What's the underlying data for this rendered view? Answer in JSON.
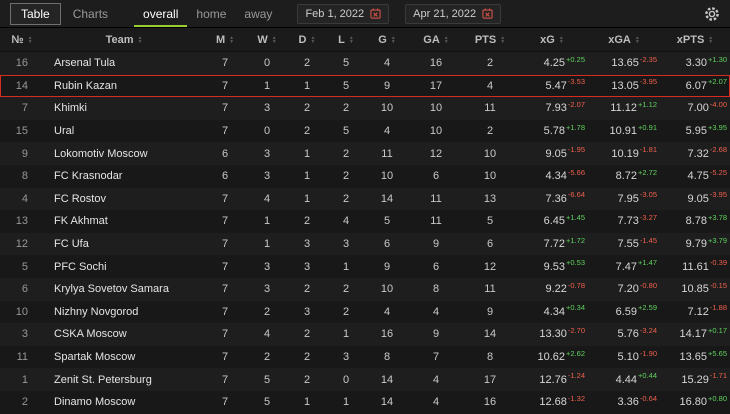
{
  "topbar": {
    "tabs": [
      {
        "label": "Table",
        "active": true
      },
      {
        "label": "Charts",
        "active": false
      }
    ],
    "scopes": [
      {
        "label": "overall",
        "active": true
      },
      {
        "label": "home",
        "active": false
      },
      {
        "label": "away",
        "active": false
      }
    ],
    "date_from": "Feb 1, 2022",
    "date_to": "Apr 21, 2022"
  },
  "table": {
    "columns": [
      "№",
      "Team",
      "M",
      "W",
      "D",
      "L",
      "G",
      "GA",
      "PTS",
      "xG",
      "xGA",
      "xPTS"
    ],
    "rows": [
      {
        "rank": "16",
        "team": "Arsenal Tula",
        "m": "7",
        "w": "0",
        "d": "2",
        "l": "5",
        "g": "4",
        "ga": "16",
        "pts": "2",
        "xg": "4.25",
        "xg_diff": "+0.25",
        "xga": "13.65",
        "xga_diff": "-2.35",
        "xpts": "3.30",
        "xpts_diff": "+1.30",
        "highlighted": false
      },
      {
        "rank": "14",
        "team": "Rubin Kazan",
        "m": "7",
        "w": "1",
        "d": "1",
        "l": "5",
        "g": "9",
        "ga": "17",
        "pts": "4",
        "xg": "5.47",
        "xg_diff": "-3.53",
        "xga": "13.05",
        "xga_diff": "-3.95",
        "xpts": "6.07",
        "xpts_diff": "+2.07",
        "highlighted": true
      },
      {
        "rank": "7",
        "team": "Khimki",
        "m": "7",
        "w": "3",
        "d": "2",
        "l": "2",
        "g": "10",
        "ga": "10",
        "pts": "11",
        "xg": "7.93",
        "xg_diff": "-2.07",
        "xga": "11.12",
        "xga_diff": "+1.12",
        "xpts": "7.00",
        "xpts_diff": "-4.00",
        "highlighted": false
      },
      {
        "rank": "15",
        "team": "Ural",
        "m": "7",
        "w": "0",
        "d": "2",
        "l": "5",
        "g": "4",
        "ga": "10",
        "pts": "2",
        "xg": "5.78",
        "xg_diff": "+1.78",
        "xga": "10.91",
        "xga_diff": "+0.91",
        "xpts": "5.95",
        "xpts_diff": "+3.95",
        "highlighted": false
      },
      {
        "rank": "9",
        "team": "Lokomotiv Moscow",
        "m": "6",
        "w": "3",
        "d": "1",
        "l": "2",
        "g": "11",
        "ga": "12",
        "pts": "10",
        "xg": "9.05",
        "xg_diff": "-1.95",
        "xga": "10.19",
        "xga_diff": "-1.81",
        "xpts": "7.32",
        "xpts_diff": "-2.68",
        "highlighted": false
      },
      {
        "rank": "8",
        "team": "FC Krasnodar",
        "m": "6",
        "w": "3",
        "d": "1",
        "l": "2",
        "g": "10",
        "ga": "6",
        "pts": "10",
        "xg": "4.34",
        "xg_diff": "-5.66",
        "xga": "8.72",
        "xga_diff": "+2.72",
        "xpts": "4.75",
        "xpts_diff": "-5.25",
        "highlighted": false
      },
      {
        "rank": "4",
        "team": "FC Rostov",
        "m": "7",
        "w": "4",
        "d": "1",
        "l": "2",
        "g": "14",
        "ga": "11",
        "pts": "13",
        "xg": "7.36",
        "xg_diff": "-6.64",
        "xga": "7.95",
        "xga_diff": "-3.05",
        "xpts": "9.05",
        "xpts_diff": "-3.95",
        "highlighted": false
      },
      {
        "rank": "13",
        "team": "FK Akhmat",
        "m": "7",
        "w": "1",
        "d": "2",
        "l": "4",
        "g": "5",
        "ga": "11",
        "pts": "5",
        "xg": "6.45",
        "xg_diff": "+1.45",
        "xga": "7.73",
        "xga_diff": "-3.27",
        "xpts": "8.78",
        "xpts_diff": "+3.78",
        "highlighted": false
      },
      {
        "rank": "12",
        "team": "FC Ufa",
        "m": "7",
        "w": "1",
        "d": "3",
        "l": "3",
        "g": "6",
        "ga": "9",
        "pts": "6",
        "xg": "7.72",
        "xg_diff": "+1.72",
        "xga": "7.55",
        "xga_diff": "-1.45",
        "xpts": "9.79",
        "xpts_diff": "+3.79",
        "highlighted": false
      },
      {
        "rank": "5",
        "team": "PFC Sochi",
        "m": "7",
        "w": "3",
        "d": "3",
        "l": "1",
        "g": "9",
        "ga": "6",
        "pts": "12",
        "xg": "9.53",
        "xg_diff": "+0.53",
        "xga": "7.47",
        "xga_diff": "+1.47",
        "xpts": "11.61",
        "xpts_diff": "-0.39",
        "highlighted": false
      },
      {
        "rank": "6",
        "team": "Krylya Sovetov Samara",
        "m": "7",
        "w": "3",
        "d": "2",
        "l": "2",
        "g": "10",
        "ga": "8",
        "pts": "11",
        "xg": "9.22",
        "xg_diff": "-0.78",
        "xga": "7.20",
        "xga_diff": "-0.80",
        "xpts": "10.85",
        "xpts_diff": "-0.15",
        "highlighted": false
      },
      {
        "rank": "10",
        "team": "Nizhny Novgorod",
        "m": "7",
        "w": "2",
        "d": "3",
        "l": "2",
        "g": "4",
        "ga": "4",
        "pts": "9",
        "xg": "4.34",
        "xg_diff": "+0.34",
        "xga": "6.59",
        "xga_diff": "+2.59",
        "xpts": "7.12",
        "xpts_diff": "-1.88",
        "highlighted": false
      },
      {
        "rank": "3",
        "team": "CSKA Moscow",
        "m": "7",
        "w": "4",
        "d": "2",
        "l": "1",
        "g": "16",
        "ga": "9",
        "pts": "14",
        "xg": "13.30",
        "xg_diff": "-2.70",
        "xga": "5.76",
        "xga_diff": "-3.24",
        "xpts": "14.17",
        "xpts_diff": "+0.17",
        "highlighted": false
      },
      {
        "rank": "11",
        "team": "Spartak Moscow",
        "m": "7",
        "w": "2",
        "d": "2",
        "l": "3",
        "g": "8",
        "ga": "7",
        "pts": "8",
        "xg": "10.62",
        "xg_diff": "+2.62",
        "xga": "5.10",
        "xga_diff": "-1.90",
        "xpts": "13.65",
        "xpts_diff": "+5.65",
        "highlighted": false
      },
      {
        "rank": "1",
        "team": "Zenit St. Petersburg",
        "m": "7",
        "w": "5",
        "d": "2",
        "l": "0",
        "g": "14",
        "ga": "4",
        "pts": "17",
        "xg": "12.76",
        "xg_diff": "-1.24",
        "xga": "4.44",
        "xga_diff": "+0.44",
        "xpts": "15.29",
        "xpts_diff": "-1.71",
        "highlighted": false
      },
      {
        "rank": "2",
        "team": "Dinamo Moscow",
        "m": "7",
        "w": "5",
        "d": "1",
        "l": "1",
        "g": "14",
        "ga": "4",
        "pts": "16",
        "xg": "12.68",
        "xg_diff": "-1.32",
        "xga": "3.36",
        "xga_diff": "-0.64",
        "xpts": "16.80",
        "xpts_diff": "+0.80",
        "highlighted": false
      }
    ]
  },
  "colors": {
    "accent_green": "#9acd32",
    "diff_positive": "#5fd35f",
    "diff_negative": "#f0604d",
    "highlight_border": "#d62c20"
  }
}
